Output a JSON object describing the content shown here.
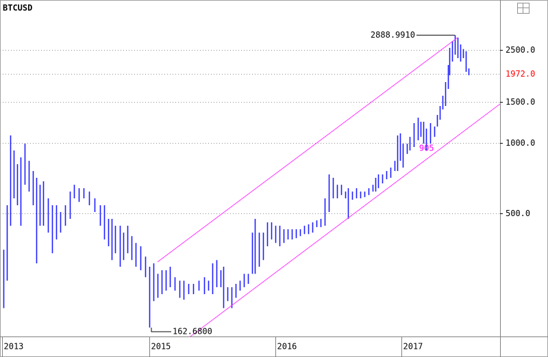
{
  "chart_data": {
    "type": "hl-bar",
    "title": "BTCUSD",
    "color": "#1c1cff",
    "log_scale": true,
    "grid": true,
    "xlim": [
      2013.815,
      2017.783
    ],
    "ylim": [
      149,
      4083
    ],
    "xticks": [
      {
        "value": 2013.831,
        "label": "2013"
      },
      2015,
      2016,
      2017
    ],
    "yticks": [
      {
        "value": 2500,
        "label": "2500.0"
      },
      {
        "value": 1500,
        "label": "1500.0"
      },
      {
        "value": 1000,
        "label": "1000.0"
      },
      {
        "value": 500,
        "label": "500.0"
      }
    ],
    "x": [
      2013.842,
      2013.87,
      2013.897,
      2013.924,
      2013.951,
      2013.978,
      2014.011,
      2014.043,
      2014.076,
      2014.103,
      2014.13,
      2014.158,
      2014.196,
      2014.228,
      2014.261,
      2014.293,
      2014.332,
      2014.37,
      2014.402,
      2014.44,
      2014.478,
      2014.522,
      2014.565,
      2014.609,
      2014.641,
      2014.674,
      2014.701,
      2014.728,
      2014.766,
      2014.793,
      2014.826,
      2014.859,
      2014.891,
      2014.929,
      2014.967,
      2015.0,
      2015.033,
      2015.065,
      2015.098,
      2015.13,
      2015.163,
      2015.201,
      2015.239,
      2015.272,
      2015.31,
      2015.348,
      2015.391,
      2015.435,
      2015.467,
      2015.5,
      2015.533,
      2015.565,
      2015.587,
      2015.62,
      2015.652,
      2015.685,
      2015.717,
      2015.75,
      2015.783,
      2015.815,
      2015.837,
      2015.87,
      2015.902,
      2015.935,
      2015.967,
      2016.0,
      2016.033,
      2016.065,
      2016.098,
      2016.13,
      2016.163,
      2016.196,
      2016.228,
      2016.261,
      2016.293,
      2016.326,
      2016.359,
      2016.391,
      2016.424,
      2016.457,
      2016.489,
      2016.522,
      2016.554,
      2016.576,
      2016.609,
      2016.641,
      2016.674,
      2016.707,
      2016.739,
      2016.772,
      2016.793,
      2016.815,
      2016.848,
      2016.88,
      2016.913,
      2016.946,
      2016.967,
      2016.989,
      2017.011,
      2017.043,
      2017.065,
      2017.098,
      2017.13,
      2017.152,
      2017.174,
      2017.196,
      2017.228,
      2017.261,
      2017.283,
      2017.304,
      2017.326,
      2017.348,
      2017.37,
      2017.38,
      2017.402,
      2017.424,
      2017.446,
      2017.467,
      2017.489,
      2017.511,
      2017.533
    ],
    "high": [
      350,
      542,
      1077,
      929,
      812,
      868,
      993,
      839,
      759,
      710,
      663,
      686,
      580,
      542,
      542,
      507,
      542,
      620,
      663,
      641,
      641,
      620,
      580,
      542,
      542,
      474,
      474,
      443,
      443,
      414,
      443,
      400,
      374,
      362,
      327,
      296,
      306,
      276,
      286,
      286,
      296,
      267,
      258,
      258,
      250,
      250,
      258,
      267,
      258,
      306,
      316,
      286,
      296,
      242,
      242,
      250,
      258,
      276,
      276,
      414,
      474,
      414,
      414,
      458,
      458,
      443,
      443,
      428,
      428,
      428,
      428,
      428,
      443,
      449,
      458,
      467,
      474,
      580,
      734,
      710,
      663,
      663,
      620,
      641,
      620,
      641,
      620,
      620,
      641,
      663,
      710,
      734,
      734,
      759,
      785,
      839,
      1077,
      1099,
      993,
      993,
      1062,
      1216,
      1283,
      1232,
      1232,
      1152,
      1216,
      1176,
      1318,
      1439,
      1592,
      1821,
      2154,
      2550,
      2727,
      2888.991,
      2819,
      2637,
      2520,
      2465,
      2083
    ],
    "low": [
      197,
      258,
      443,
      580,
      542,
      443,
      663,
      620,
      542,
      306,
      443,
      443,
      414,
      338,
      387,
      414,
      443,
      474,
      580,
      560,
      580,
      542,
      507,
      443,
      387,
      362,
      316,
      338,
      296,
      316,
      338,
      316,
      296,
      286,
      267,
      162.68,
      211,
      218,
      226,
      234,
      242,
      234,
      218,
      214,
      226,
      226,
      234,
      226,
      234,
      226,
      242,
      242,
      197,
      211,
      197,
      218,
      234,
      242,
      250,
      276,
      276,
      296,
      316,
      362,
      387,
      374,
      362,
      374,
      387,
      387,
      392,
      400,
      408,
      408,
      414,
      437,
      437,
      443,
      507,
      580,
      580,
      599,
      580,
      474,
      572,
      580,
      580,
      587,
      599,
      620,
      620,
      641,
      672,
      700,
      710,
      759,
      759,
      839,
      785,
      898,
      929,
      961,
      1027,
      1062,
      993,
      929,
      993,
      1062,
      1176,
      1257,
      1391,
      1439,
      1702,
      1947,
      2228,
      2384,
      2305,
      2228,
      2305,
      2014,
      1947
    ],
    "annotations": [
      {
        "text": "2888.9910",
        "x": 2017.424,
        "y": 2888.991,
        "color": "#000000"
      },
      {
        "text": "162.6800",
        "x": 2015.0,
        "y": 162.68,
        "color": "#000000"
      },
      {
        "text": "905",
        "x": 2017.141,
        "y": 905,
        "color": "#ff00ff"
      }
    ],
    "current_price": {
      "value": 1972,
      "label": "1972.0",
      "color": "#ff0000"
    }
  }
}
